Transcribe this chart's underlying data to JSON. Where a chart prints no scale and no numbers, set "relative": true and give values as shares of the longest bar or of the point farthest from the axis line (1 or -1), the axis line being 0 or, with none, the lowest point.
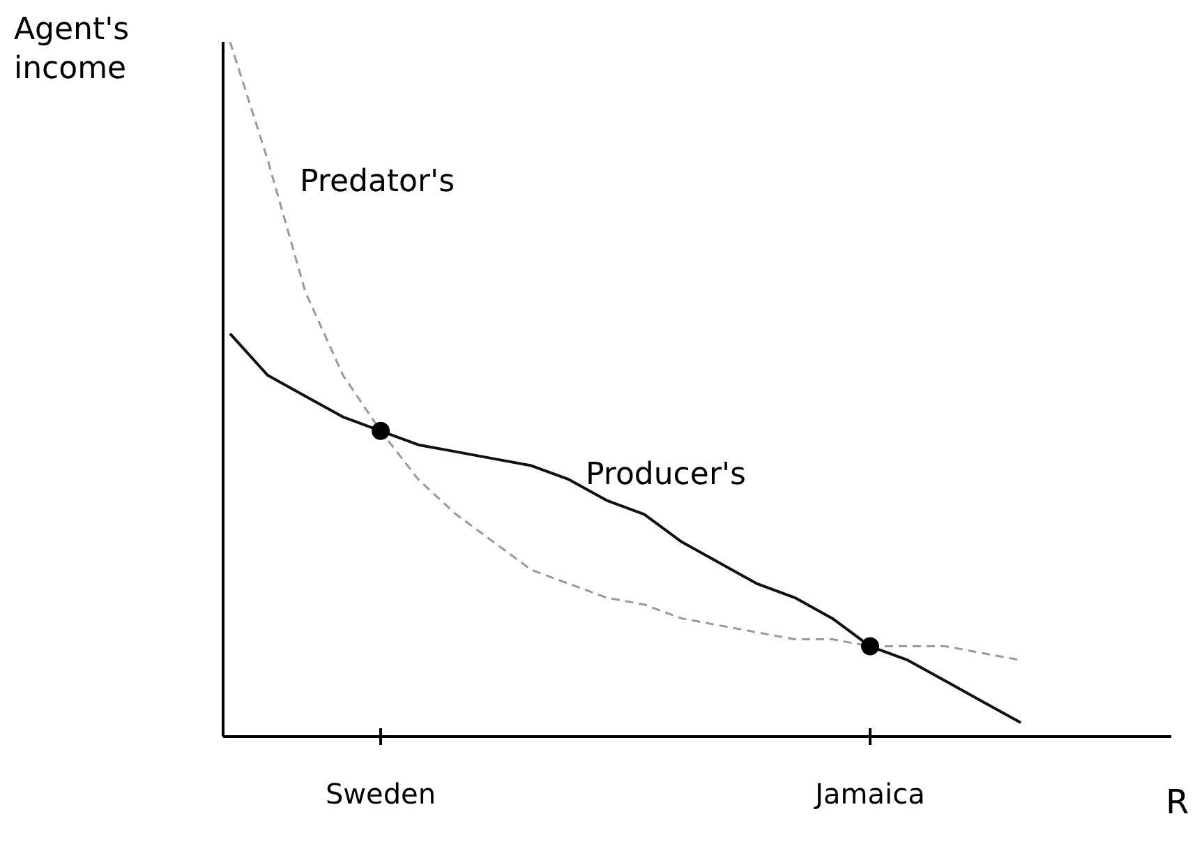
{
  "chart_data": {
    "type": "line",
    "relative": true,
    "xlabel": "R",
    "ylabel": "Agent's income",
    "categories": [
      null,
      null,
      null,
      null,
      "Sweden",
      null,
      null,
      null,
      null,
      null,
      null,
      null,
      null,
      null,
      null,
      null,
      null,
      "Jamaica",
      null,
      null,
      null,
      null,
      null,
      null,
      null,
      null
    ],
    "series": [
      {
        "name": "Predator's",
        "color": "#9a9a9a",
        "line_style": "dashed",
        "values": [
          1.0,
          0.83,
          0.64,
          0.52,
          0.44,
          0.37,
          0.32,
          0.28,
          0.24,
          0.22,
          0.2,
          0.19,
          0.17,
          0.16,
          0.15,
          0.14,
          0.14,
          0.13,
          0.13,
          0.13,
          0.12,
          0.11,
          null,
          null,
          null,
          null
        ]
      },
      {
        "name": "Producer's",
        "color": "#111111",
        "line_style": "solid",
        "values": [
          0.58,
          0.52,
          0.49,
          0.46,
          0.44,
          0.42,
          0.41,
          0.4,
          0.39,
          0.37,
          0.34,
          0.32,
          0.28,
          0.25,
          0.22,
          0.2,
          0.17,
          0.13,
          0.11,
          0.08,
          0.05,
          0.02,
          null,
          null,
          null,
          null
        ]
      },
      {
        "type": "scatter",
        "color": "#000000",
        "marker": "circle",
        "x": [
          "Sweden",
          "Jamaica"
        ],
        "values": [
          0.44,
          0.13
        ]
      }
    ],
    "marker": "none",
    "grid": false,
    "legend": false
  }
}
